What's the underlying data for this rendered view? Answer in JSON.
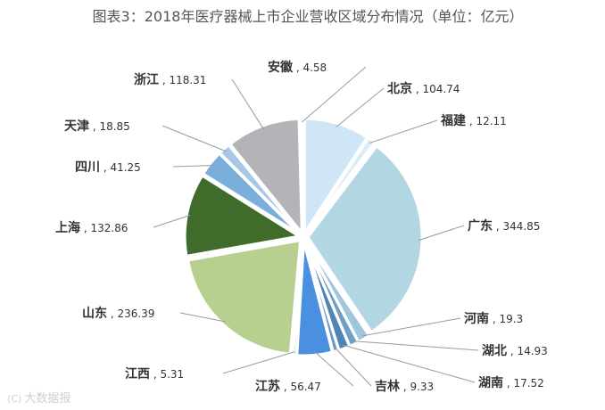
{
  "chart_data": {
    "type": "pie",
    "title": "图表3：2018年医疗器械上市企业营收区域分布情况（单位：亿元）",
    "unit": "亿元",
    "slices": [
      {
        "name": "北京",
        "value": 104.74,
        "label": "北京，104.74",
        "color": "#cfe6f6"
      },
      {
        "name": "福建",
        "value": 12.11,
        "label": "福建，12.11",
        "color": "#dcecf5"
      },
      {
        "name": "广东",
        "value": 344.85,
        "label": "广东，344.85",
        "color": "#b3d6e3"
      },
      {
        "name": "河南",
        "value": 19.3,
        "label": "河南，19.3",
        "color": "#9fc6dc"
      },
      {
        "name": "湖北",
        "value": 14.93,
        "label": "湖北，14.93",
        "color": "#6f9fc4"
      },
      {
        "name": "湖南",
        "value": 17.52,
        "label": "湖南，17.52",
        "color": "#4f84b4"
      },
      {
        "name": "吉林",
        "value": 9.33,
        "label": "吉林，9.33",
        "color": "#6c98c8"
      },
      {
        "name": "江苏",
        "value": 56.47,
        "label": "江苏，56.47",
        "color": "#4a8fe0"
      },
      {
        "name": "江西",
        "value": 5.31,
        "label": "江西，5.31",
        "color": "#c4d8a8"
      },
      {
        "name": "山东",
        "value": 236.39,
        "label": "山东，236.39",
        "color": "#b8d08f"
      },
      {
        "name": "上海",
        "value": 132.86,
        "label": "上海，132.86",
        "color": "#3f6b2b"
      },
      {
        "name": "四川",
        "value": 41.25,
        "label": "四川，41.25",
        "color": "#7aaedb"
      },
      {
        "name": "天津",
        "value": 18.85,
        "label": "天津，18.85",
        "color": "#a8c6e6"
      },
      {
        "name": "浙江",
        "value": 118.31,
        "label": "浙江，118.31",
        "color": "#b4b4b8"
      },
      {
        "name": "安徽",
        "value": 4.58,
        "label": "安徽，4.58",
        "color": "#d9d9d9"
      }
    ]
  },
  "watermark": {
    "logo": "(C)",
    "text": "大数据报"
  }
}
